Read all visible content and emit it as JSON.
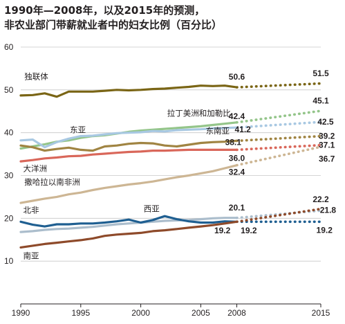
{
  "chart_data": {
    "type": "line",
    "title": "1990年—2008年，以及2015年的预测，",
    "subtitle": "非农业部门带薪就业者中的妇女比例（百分比）",
    "xlabel": "",
    "ylabel": "",
    "x_ticks": [
      "1990",
      "1995",
      "2000",
      "2005",
      "2008",
      "2015"
    ],
    "y_ticks": [
      "60",
      "50",
      "40",
      "30",
      "20",
      "10"
    ],
    "xlim": [
      1990,
      2015
    ],
    "ylim": [
      0,
      60
    ],
    "grid": true,
    "forecast_from": 2008,
    "forecast_to": 2015,
    "series": [
      {
        "name": "独联体",
        "color": "#7a6515",
        "values": [
          48.7,
          48.8,
          49.2,
          48.4,
          49.6,
          49.6,
          49.6,
          49.8,
          50.0,
          49.9,
          50.0,
          50.2,
          50.3,
          50.5,
          50.7,
          51.0,
          50.9,
          51.0,
          50.6
        ],
        "label_2008": "50.6",
        "forecast_2015": 51.5,
        "label_2015": "51.5"
      },
      {
        "name": "拉丁美洲和加勒比",
        "color": "#94c58a",
        "values": [
          36.3,
          36.8,
          37.3,
          37.9,
          38.2,
          38.8,
          39.2,
          39.4,
          39.8,
          40.2,
          40.5,
          40.7,
          40.9,
          41.1,
          41.3,
          41.5,
          41.8,
          42.1,
          42.4
        ],
        "label_2008": "42.4",
        "forecast_2015": 45.1,
        "label_2015": "45.1"
      },
      {
        "name": "东亚",
        "color": "#a8c8e2",
        "values": [
          38.2,
          38.4,
          36.6,
          37.8,
          38.6,
          39.2,
          39.3,
          39.6,
          39.9,
          40.0,
          40.1,
          40.4,
          40.3,
          40.6,
          40.7,
          40.8,
          41.0,
          41.1,
          41.2
        ],
        "label_2008": "41.2",
        "forecast_2015": 42.5,
        "label_2015": "42.5"
      },
      {
        "name": "东南亚",
        "color": "#a08442",
        "values": [
          37.0,
          36.6,
          35.8,
          36.2,
          36.5,
          36.0,
          35.8,
          36.8,
          37.0,
          37.4,
          37.6,
          37.5,
          37.0,
          36.8,
          37.2,
          37.6,
          37.8,
          37.9,
          38.1
        ],
        "label_2008": "38.1",
        "forecast_2015": 39.2,
        "label_2015": "39.2"
      },
      {
        "name": "大洋洲",
        "color": "#d9675a",
        "values": [
          33.3,
          33.6,
          34.0,
          34.2,
          34.5,
          34.6,
          34.9,
          35.1,
          35.3,
          35.5,
          35.6,
          35.8,
          35.8,
          35.9,
          36.0,
          36.0,
          36.0,
          36.0,
          36.0
        ],
        "label_2008": "36.0",
        "forecast_2015": 37.1,
        "label_2015": "37.1"
      },
      {
        "name": "撒哈拉以南非洲",
        "color": "#cdb694",
        "values": [
          23.6,
          24.1,
          24.6,
          25.0,
          25.6,
          26.0,
          26.6,
          27.1,
          27.5,
          27.9,
          28.2,
          28.6,
          29.1,
          29.6,
          30.0,
          30.5,
          31.0,
          31.7,
          32.4
        ],
        "label_2008": "32.4",
        "forecast_2015": 36.7,
        "label_2015": "36.7"
      },
      {
        "name": "西亚",
        "color": "#abbdcc",
        "values": [
          16.8,
          17.0,
          17.3,
          17.5,
          17.6,
          17.8,
          18.0,
          18.3,
          18.6,
          18.8,
          19.0,
          19.2,
          19.4,
          19.5,
          19.6,
          19.8,
          20.0,
          20.1,
          20.1
        ],
        "label_2008": "20.1",
        "forecast_2015": 21.8,
        "label_2015": "21.8"
      },
      {
        "name": "北非",
        "color": "#1f5f91",
        "values": [
          19.2,
          18.5,
          18.1,
          18.6,
          18.6,
          18.8,
          18.8,
          19.0,
          19.3,
          19.7,
          19.0,
          19.6,
          20.5,
          19.8,
          19.3,
          19.0,
          19.0,
          19.3,
          19.2
        ],
        "label_2008": "19.2",
        "forecast_2015": 19.2,
        "label_2015": "19.2"
      },
      {
        "name": "南亚",
        "color": "#8e4a2a",
        "values": [
          13.2,
          13.6,
          14.0,
          14.3,
          14.6,
          14.9,
          15.3,
          15.9,
          16.2,
          16.4,
          16.6,
          17.0,
          17.2,
          17.5,
          17.8,
          18.1,
          18.4,
          18.8,
          19.2
        ],
        "label_2008": "19.2",
        "forecast_2015": 22.2,
        "label_2015": "22.2"
      }
    ]
  }
}
